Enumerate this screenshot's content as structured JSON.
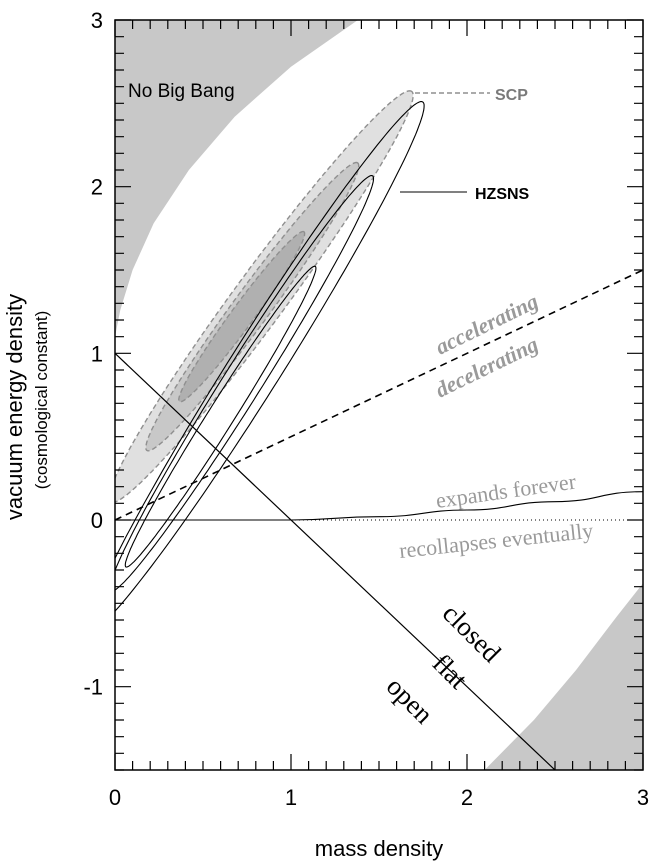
{
  "chart_data": {
    "type": "contour",
    "xlabel": "mass density",
    "ylabel": "vacuum energy density",
    "ylabel_sub": "(cosmological constant)",
    "xlim": [
      0,
      3
    ],
    "ylim": [
      -1.5,
      3
    ],
    "xticks": [
      0,
      1,
      2,
      3
    ],
    "yticks": [
      -1,
      0,
      1,
      2,
      3
    ],
    "x_tick_labels": [
      "0",
      "1",
      "2",
      "3"
    ],
    "y_tick_labels": [
      "-1",
      "0",
      "1",
      "2",
      "3"
    ],
    "grid": false,
    "regions": {
      "no_big_bang_label": "No Big Bang"
    },
    "series": [
      {
        "name": "SCP",
        "style": "filled-dashed",
        "color": "#a0a0a0"
      },
      {
        "name": "HZSNS",
        "style": "solid-contours",
        "color": "#000000"
      }
    ],
    "boundary_labels": {
      "accelerating": "accelerating",
      "decelerating": "decelerating",
      "expands_forever": "expands forever",
      "recollapses_eventually": "recollapses eventually",
      "closed": "closed",
      "flat": "flat",
      "open": "open"
    },
    "flat_line": {
      "x": [
        0,
        2.5
      ],
      "y": [
        1,
        -1.5
      ]
    },
    "accel_line": {
      "x": [
        0,
        3
      ],
      "y": [
        0,
        1.5
      ]
    },
    "recollapse_curve": {
      "x": [
        0,
        1,
        1.5,
        2,
        2.5,
        3
      ],
      "y": [
        0,
        0,
        0.02,
        0.06,
        0.11,
        0.17
      ]
    },
    "zero_line": {
      "x": [
        0,
        3
      ],
      "y": [
        0,
        0
      ]
    },
    "colors": {
      "excluded": "#c8c8c8",
      "scp_outer": "#e0e0e0",
      "scp_inner": "#c8c8c8",
      "scp_core": "#b0b0b0",
      "label_gray": "#9a9a9a"
    }
  }
}
